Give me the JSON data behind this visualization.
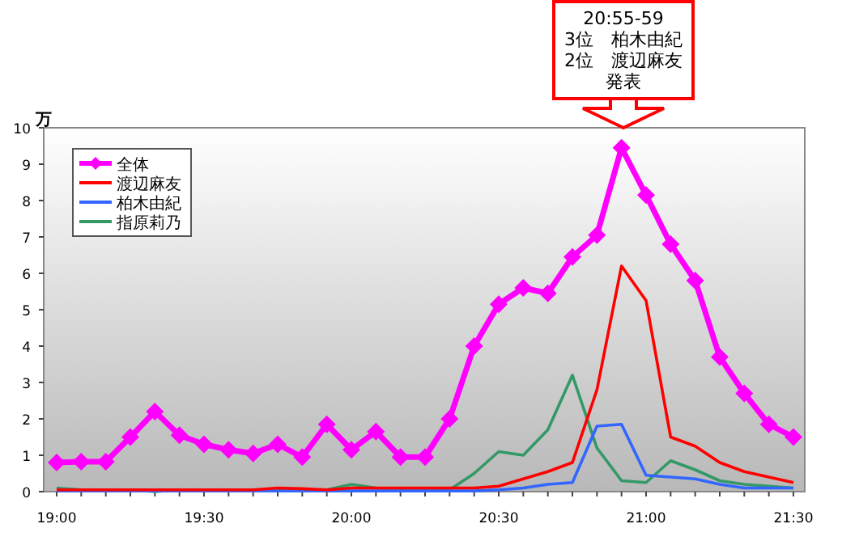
{
  "chart_data": {
    "type": "line",
    "ylabel": "万",
    "categories": [
      "19:00",
      null,
      null,
      null,
      null,
      null,
      "19:30",
      null,
      null,
      null,
      null,
      null,
      "20:00",
      null,
      null,
      null,
      null,
      null,
      "20:30",
      null,
      null,
      null,
      null,
      null,
      "21:00",
      null,
      null,
      null,
      null,
      null,
      "21:30"
    ],
    "ylim": [
      0,
      10
    ],
    "yticks": [
      0,
      1,
      2,
      3,
      4,
      5,
      6,
      7,
      8,
      9,
      10
    ],
    "grid": false,
    "legend": "top left",
    "annotations": [
      "20:55-59",
      "3位　柏木由紀",
      "2位　渡辺麻友",
      "発表"
    ],
    "series": [
      {
        "name": "全体",
        "color": "#ff00ff",
        "marker": "diamond",
        "values": [
          0.8,
          0.82,
          0.82,
          1.5,
          2.2,
          1.55,
          1.3,
          1.15,
          1.05,
          1.3,
          0.95,
          1.85,
          1.15,
          1.65,
          0.95,
          0.95,
          2.0,
          4.0,
          5.15,
          5.6,
          5.45,
          6.45,
          7.05,
          9.45,
          8.15,
          6.8,
          5.8,
          3.7,
          2.7,
          1.85,
          1.5
        ]
      },
      {
        "name": "渡辺麻友",
        "color": "#ff0000",
        "values": [
          0.05,
          0.05,
          0.05,
          0.05,
          0.05,
          0.05,
          0.05,
          0.05,
          0.05,
          0.1,
          0.08,
          0.05,
          0.1,
          0.1,
          0.1,
          0.1,
          0.1,
          0.1,
          0.15,
          0.35,
          0.55,
          0.8,
          2.8,
          6.2,
          5.25,
          1.5,
          1.25,
          0.8,
          0.55,
          0.4,
          0.25
        ]
      },
      {
        "name": "柏木由紀",
        "color": "#3366ff",
        "values": [
          0.02,
          0.02,
          0.02,
          0.02,
          0.02,
          0.02,
          0.02,
          0.02,
          0.02,
          0.02,
          0.02,
          0.02,
          0.02,
          0.02,
          0.02,
          0.02,
          0.02,
          0.02,
          0.05,
          0.1,
          0.2,
          0.25,
          1.8,
          1.85,
          0.45,
          0.4,
          0.35,
          0.2,
          0.1,
          0.1,
          0.1
        ]
      },
      {
        "name": "指原莉乃",
        "color": "#339966",
        "values": [
          0.1,
          0.05,
          0.05,
          0.05,
          0.0,
          0.05,
          0.05,
          0.05,
          0.05,
          0.05,
          0.05,
          0.05,
          0.2,
          0.1,
          0.05,
          0.05,
          0.05,
          0.5,
          1.1,
          1.0,
          1.7,
          3.2,
          1.2,
          0.3,
          0.25,
          0.85,
          0.6,
          0.3,
          0.2,
          0.15,
          0.1
        ]
      }
    ]
  }
}
